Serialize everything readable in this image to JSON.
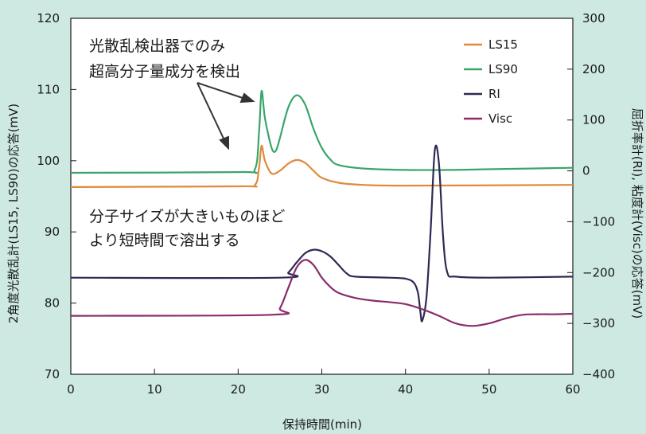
{
  "chart_data": {
    "type": "line",
    "title": "",
    "xlabel": "保持時間(min)",
    "ylabel_left": "2角度光散乱計(LS15, LS90)の応答(mV)",
    "ylabel_right": "屈折率計(RI), 粘度計(Visc)の応答(mV)",
    "xlim": [
      0,
      60
    ],
    "ylim_left": [
      70,
      120
    ],
    "ylim_right": [
      -400,
      300
    ],
    "x_ticks": [
      "0",
      "10",
      "20",
      "30",
      "40",
      "50",
      "60"
    ],
    "y_left_ticks": [
      "70",
      "80",
      "90",
      "100",
      "110",
      "120"
    ],
    "y_right_ticks": [
      "−400",
      "−300",
      "−200",
      "−100",
      "0",
      "100",
      "200",
      "300"
    ],
    "grid": false,
    "legend_position": "top-right",
    "annotations": [
      {
        "lines": [
          "光散乱検出器でのみ",
          "超高分子量成分を検出"
        ]
      },
      {
        "lines": [
          "分子サイズが大きいものほど",
          "より短時間で溶出する"
        ]
      }
    ],
    "series": [
      {
        "name": "LS15",
        "color": "#e08a3c",
        "axis": "left",
        "x": [
          0,
          20,
          22,
          22.5,
          22.8,
          23.2,
          24,
          25,
          26,
          27,
          28,
          29,
          30,
          32,
          35,
          40,
          60
        ],
        "y": [
          96.3,
          96.4,
          96.6,
          99,
          102.1,
          100,
          98.2,
          98.6,
          99.6,
          100.1,
          99.7,
          98.6,
          97.6,
          96.9,
          96.6,
          96.5,
          96.6
        ]
      },
      {
        "name": "LS90",
        "color": "#3aa56a",
        "axis": "left",
        "x": [
          0,
          20,
          22,
          22.5,
          22.8,
          23.2,
          24,
          24.5,
          25,
          26,
          27,
          28,
          29,
          30,
          31,
          32,
          35,
          40,
          45,
          50,
          55,
          60
        ],
        "y": [
          98.3,
          98.4,
          98.8,
          104,
          109.8,
          106,
          101.8,
          101.4,
          103.2,
          107.5,
          109.2,
          107.9,
          104.5,
          101.8,
          100.2,
          99.4,
          98.9,
          98.7,
          98.7,
          98.8,
          98.9,
          99.0
        ]
      },
      {
        "name": "RI",
        "color": "#2c2a55",
        "axis": "right",
        "x": [
          0,
          25,
          26,
          27,
          28,
          29,
          30,
          31,
          32,
          33,
          34,
          38,
          40,
          41,
          41.5,
          41.8,
          42.0,
          42.5,
          43,
          43.5,
          44,
          44.5,
          45,
          46,
          50,
          60
        ],
        "y": [
          -210,
          -210,
          -200,
          -180,
          -162,
          -155,
          -158,
          -168,
          -185,
          -202,
          -208,
          -210,
          -212,
          -220,
          -240,
          -280,
          -295,
          -250,
          -120,
          40,
          15,
          -130,
          -200,
          -208,
          -210,
          -208
        ]
      },
      {
        "name": "Visc",
        "color": "#8a2c6a",
        "axis": "right",
        "x": [
          0,
          24,
          25,
          26,
          27,
          28,
          29,
          30,
          31,
          32,
          34,
          36,
          38,
          40,
          42,
          44,
          46,
          48,
          50,
          52,
          54,
          56,
          58,
          60
        ],
        "y": [
          -285,
          -283,
          -270,
          -230,
          -190,
          -175,
          -185,
          -210,
          -228,
          -240,
          -250,
          -255,
          -258,
          -262,
          -272,
          -285,
          -300,
          -305,
          -300,
          -290,
          -283,
          -282,
          -282,
          -281
        ]
      }
    ]
  }
}
